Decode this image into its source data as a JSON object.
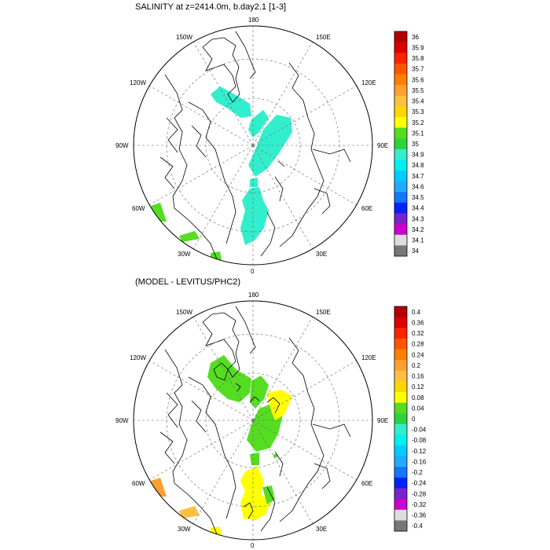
{
  "panels": [
    {
      "title": "SALINITY at z=2414.0m, b.day2.1 [1-3]",
      "lon_labels": {
        "top": "180",
        "bottom": "0",
        "left": "90W",
        "right": "90E",
        "ul1": "150W",
        "ul2": "120W",
        "ur1": "150E",
        "ur2": "120E",
        "ll1": "60W",
        "ll2": "30W",
        "lr1": "60E",
        "lr2": "30E"
      },
      "colorbar": {
        "labels": [
          "36",
          "35.9",
          "35.8",
          "35.7",
          "35.6",
          "35.5",
          "35.4",
          "35.3",
          "35.2",
          "35.1",
          "35",
          "34.9",
          "34.8",
          "34.7",
          "34.6",
          "34.5",
          "34.4",
          "34.3",
          "34.2",
          "34.1",
          "34"
        ],
        "colors": [
          "#b30000",
          "#dd0000",
          "#ff2200",
          "#ff5500",
          "#ff7f00",
          "#ff9f33",
          "#ffbf40",
          "#ffd700",
          "#ffff00",
          "#55dd22",
          "#2ed33a",
          "#33eecc",
          "#00f0f0",
          "#00ccff",
          "#22aaff",
          "#1177ff",
          "#0022ff",
          "#7a22cc",
          "#cc00cc",
          "#dddddd",
          "#777777"
        ]
      }
    },
    {
      "title": "(MODEL - LEVITUS/PHC2)",
      "lon_labels": {
        "top": "180",
        "bottom": "0",
        "left": "90W",
        "right": "90E",
        "ul1": "150W",
        "ul2": "120W",
        "ur1": "150E",
        "ur2": "120E",
        "ll1": "60W",
        "ll2": "30W",
        "lr1": "60E",
        "lr2": "30E"
      },
      "colorbar": {
        "labels": [
          "0.4",
          "0.36",
          "0.32",
          "0.28",
          "0.24",
          "0.2",
          "0.16",
          "0.12",
          "0.08",
          "0.04",
          "0",
          "-0.04",
          "-0.08",
          "-0.12",
          "-0.16",
          "-0.2",
          "-0.24",
          "-0.28",
          "-0.32",
          "-0.36",
          "-0.4"
        ],
        "colors": [
          "#b30000",
          "#dd0000",
          "#ff2200",
          "#ff5500",
          "#ff7f00",
          "#ff9f33",
          "#ffbf40",
          "#ffd700",
          "#ffff00",
          "#55dd22",
          "#2ed33a",
          "#33eecc",
          "#00f0f0",
          "#00ccff",
          "#22aaff",
          "#1177ff",
          "#0022ff",
          "#7a22cc",
          "#cc00cc",
          "#dddddd",
          "#777777"
        ]
      }
    }
  ]
}
